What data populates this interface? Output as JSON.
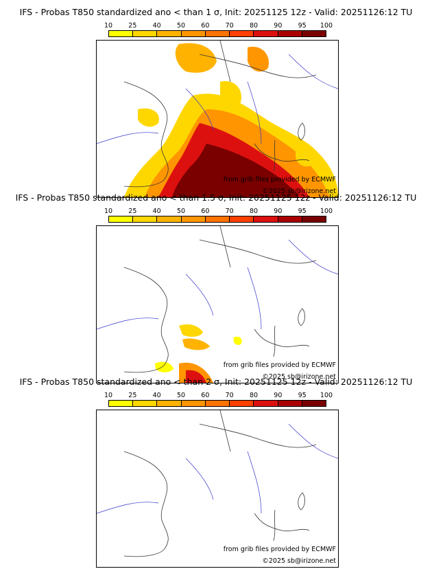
{
  "colorbar": {
    "ticks": [
      "10",
      "25",
      "40",
      "50",
      "60",
      "70",
      "80",
      "90",
      "95",
      "100"
    ],
    "colors": [
      "#ffff00",
      "#ffd700",
      "#ffb300",
      "#ff9500",
      "#ff7300",
      "#ff4000",
      "#dd1010",
      "#aa0000",
      "#7a0000"
    ]
  },
  "credits": {
    "source": "from grib files provided by ECMWF",
    "copyright": "©2025 sb@irizone.net"
  },
  "panels": [
    {
      "title": "IFS - Probas T850  standardized ano < than 1 σ, Init: 20251125 12z - Valid: 20251126:12 TU",
      "threshold": "1 σ"
    },
    {
      "title": "IFS - Probas T850  standardized ano < than 1.5 σ, Init: 20251125 12z - Valid: 20251126:12 TU",
      "threshold": "1.5 σ"
    },
    {
      "title": "IFS - Probas T850  standardized ano < than 2 σ, Init: 20251125 12z - Valid: 20251126:12 TU",
      "threshold": "2 σ"
    }
  ]
}
